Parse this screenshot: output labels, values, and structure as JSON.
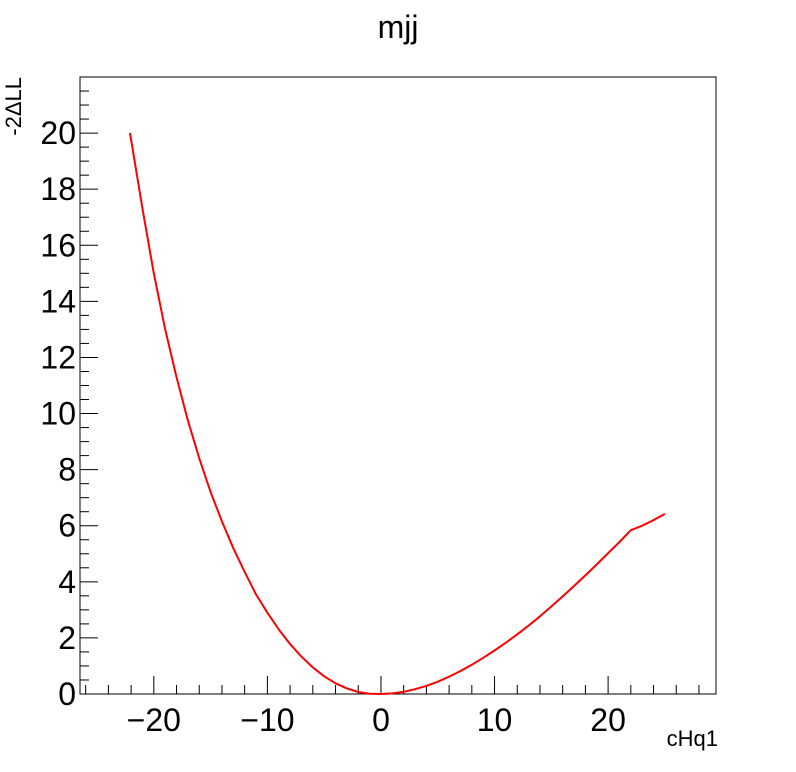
{
  "chart_data": {
    "type": "line",
    "title": "mjj",
    "xlabel": "cHq1",
    "ylabel": "-2ΔLL",
    "xlim": [
      -26.5,
      29.5
    ],
    "ylim": [
      0,
      22
    ],
    "xticks": [
      -20,
      -10,
      0,
      10,
      20
    ],
    "xtick_labels": [
      "−20",
      "−10",
      "0",
      "10",
      "20"
    ],
    "yticks": [
      0,
      2,
      4,
      6,
      8,
      10,
      12,
      14,
      16,
      18,
      20
    ],
    "ytick_labels": [
      "0",
      "2",
      "4",
      "6",
      "8",
      "10",
      "12",
      "14",
      "16",
      "18",
      "20"
    ],
    "grid": false,
    "line_color": "#ff0000",
    "series": [
      {
        "x": [
          -22.1,
          -21,
          -20,
          -19,
          -18,
          -17,
          -16,
          -15,
          -14,
          -13,
          -12,
          -11,
          -10,
          -9,
          -8,
          -7,
          -6,
          -5,
          -4,
          -3,
          -2,
          -1,
          0,
          1,
          2,
          3,
          4,
          5,
          6,
          7,
          8,
          9,
          10,
          11,
          12,
          13,
          14,
          15,
          16,
          17,
          18,
          19,
          20,
          21,
          22,
          23,
          24,
          25
        ],
        "values": [
          20.0,
          17.3,
          15.0,
          13.0,
          11.3,
          9.75,
          8.4,
          7.2,
          6.15,
          5.2,
          4.35,
          3.55,
          2.9,
          2.3,
          1.78,
          1.33,
          0.95,
          0.63,
          0.38,
          0.2,
          0.07,
          0.01,
          0.0,
          0.02,
          0.08,
          0.17,
          0.29,
          0.44,
          0.62,
          0.82,
          1.04,
          1.29,
          1.55,
          1.83,
          2.13,
          2.44,
          2.77,
          3.12,
          3.48,
          3.85,
          4.23,
          4.62,
          5.02,
          5.42,
          5.84,
          6.0,
          6.2,
          6.42
        ]
      }
    ]
  }
}
